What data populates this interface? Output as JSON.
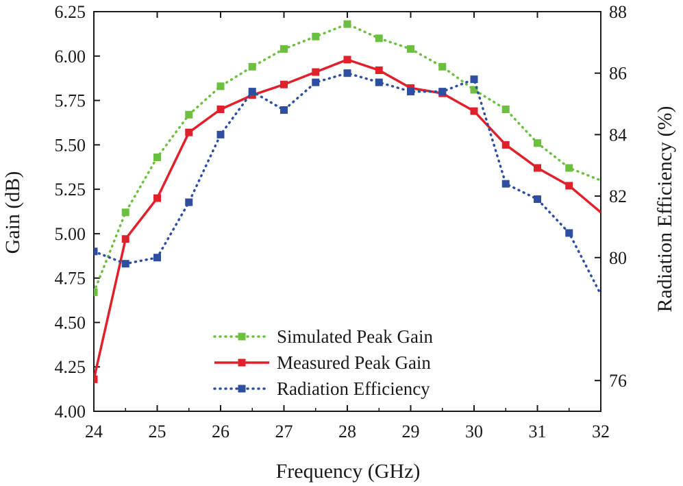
{
  "chart_data": {
    "type": "line",
    "xlabel": "Frequency (GHz)",
    "ylabel": "Gain (dB)",
    "ylabel_right": "Radiation Efficiency (%)",
    "xlim": [
      24,
      32
    ],
    "ylim": [
      4.0,
      6.25
    ],
    "ylim_right": [
      75,
      88
    ],
    "x_ticks": [
      24,
      25,
      26,
      27,
      28,
      29,
      30,
      31,
      32
    ],
    "x_tick_labels": [
      "24",
      "25",
      "26",
      "27",
      "28",
      "29",
      "30",
      "31",
      "32"
    ],
    "y_ticks": [
      4.0,
      4.25,
      4.5,
      4.75,
      5.0,
      5.25,
      5.5,
      5.75,
      6.0,
      6.25
    ],
    "y_tick_labels": [
      "4.00",
      "4.25",
      "4.50",
      "4.75",
      "5.00",
      "5.25",
      "5.50",
      "5.75",
      "6.00",
      "6.25"
    ],
    "y_ticks_right": [
      76,
      80,
      82,
      84,
      86,
      88
    ],
    "y_tick_labels_right": [
      "76",
      "80",
      "82",
      "84",
      "86",
      "88"
    ],
    "grid": false,
    "legend_position": "bottom-center",
    "x": [
      24,
      24.5,
      25,
      25.5,
      26,
      26.5,
      27,
      27.5,
      28,
      28.5,
      29,
      29.5,
      30,
      30.5,
      31,
      31.5,
      32
    ],
    "series": [
      {
        "name": "Simulated Peak Gain",
        "axis": "left",
        "color": "#6cbf3f",
        "line": "dotted",
        "marker": "square",
        "values": [
          4.67,
          5.12,
          5.43,
          5.67,
          5.83,
          5.94,
          6.04,
          6.11,
          6.18,
          6.1,
          6.04,
          5.94,
          5.81,
          5.7,
          5.51,
          5.37,
          5.3
        ]
      },
      {
        "name": "Measured Peak Gain",
        "axis": "left",
        "color": "#e0202a",
        "line": "solid",
        "marker": "square",
        "values": [
          4.18,
          4.97,
          5.2,
          5.57,
          5.7,
          5.78,
          5.84,
          5.91,
          5.98,
          5.92,
          5.82,
          5.79,
          5.69,
          5.5,
          5.37,
          5.27,
          5.12
        ]
      },
      {
        "name": "Radiation Efficiency",
        "axis": "right",
        "color": "#2e4fa0",
        "line": "dotted",
        "marker": "square",
        "values": [
          80.2,
          79.8,
          80.0,
          81.8,
          84.0,
          85.4,
          84.8,
          85.7,
          86.0,
          85.7,
          85.4,
          85.4,
          85.8,
          82.4,
          81.9,
          80.8,
          78.8
        ]
      }
    ]
  }
}
